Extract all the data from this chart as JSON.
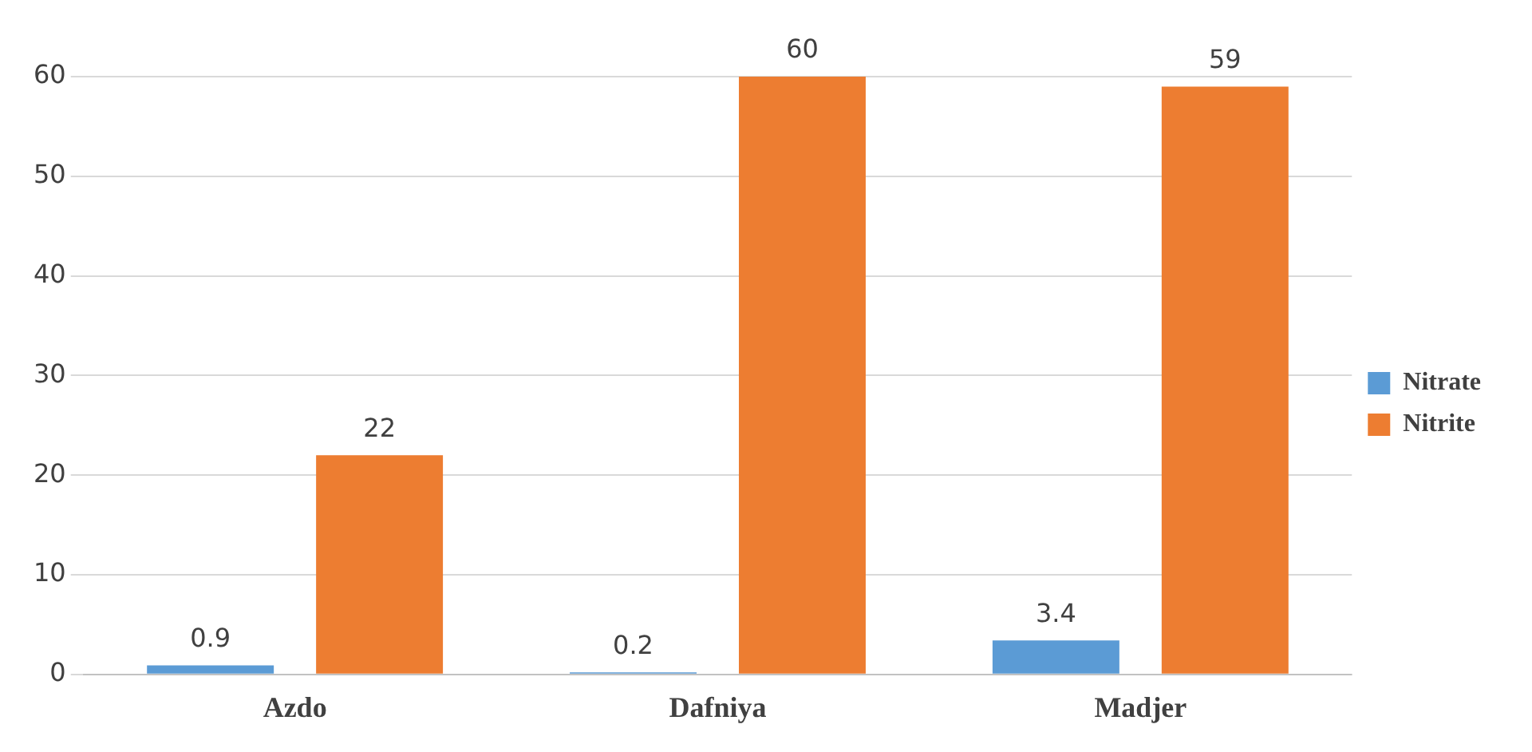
{
  "chart_data": {
    "type": "bar",
    "categories": [
      "Azdo",
      "Dafniya",
      "Madjer"
    ],
    "series": [
      {
        "name": "Nitrate",
        "color": "#5b9bd5",
        "values": [
          0.9,
          0.2,
          3.4
        ]
      },
      {
        "name": "Nitrite",
        "color": "#ed7d31",
        "values": [
          22,
          60,
          59
        ]
      }
    ],
    "ylim": [
      0,
      60
    ],
    "yticks": [
      0,
      10,
      20,
      30,
      40,
      50,
      60
    ],
    "grid": "y",
    "legend": "right",
    "data_labels": true
  }
}
